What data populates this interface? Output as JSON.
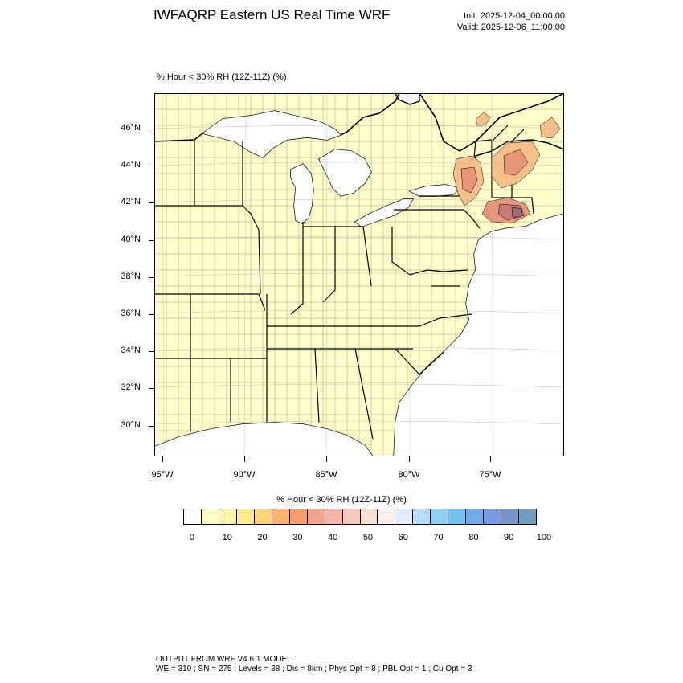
{
  "header": {
    "title": "IWFAQRP Eastern US Real Time WRF",
    "init": "Init: 2025-12-04_00:00:00",
    "valid": "Valid: 2025-12-06_11:00:00"
  },
  "map": {
    "field_label": "% Hour < 30% RH (12Z-11Z)   (%)",
    "lat_labels": [
      "46°N",
      "44°N",
      "42°N",
      "40°N",
      "38°N",
      "36°N",
      "34°N",
      "32°N",
      "30°N"
    ],
    "lon_labels": [
      "95°W",
      "90°W",
      "85°W",
      "80°W",
      "75°W"
    ],
    "land_color": "#FFFFCC",
    "water_color": "#FFFFFF",
    "highlight_colors": [
      "#F5C08A",
      "#E8967A",
      "#C87A74",
      "#9E6B7A"
    ]
  },
  "colorbar": {
    "title": "% Hour < 30% RH (12Z-11Z)  (%)",
    "colors": [
      "#FFFFFF",
      "#FFFFCC",
      "#FFF5A8",
      "#FDEB8C",
      "#FAD27A",
      "#F8B46A",
      "#F79D6E",
      "#F4A58F",
      "#F2B7A8",
      "#F4C9BC",
      "#F8E0D6",
      "#FBF0EA",
      "#E4EEFB",
      "#B8DEF7",
      "#8CD2F4",
      "#6FC3EF",
      "#74ABE8",
      "#7A98E3",
      "#7794C8",
      "#6F9FBE"
    ],
    "labels": [
      "0",
      "10",
      "20",
      "30",
      "40",
      "50",
      "60",
      "70",
      "80",
      "90",
      "100"
    ]
  },
  "footer": {
    "line1": "OUTPUT FROM WRF V4.6.1 MODEL",
    "line2": "WE = 310 ; SN = 275 ; Levels = 38 ; Dis = 8km ; Phys Opt = 8 ; PBL Opt = 1 ; Cu Opt = 3"
  }
}
